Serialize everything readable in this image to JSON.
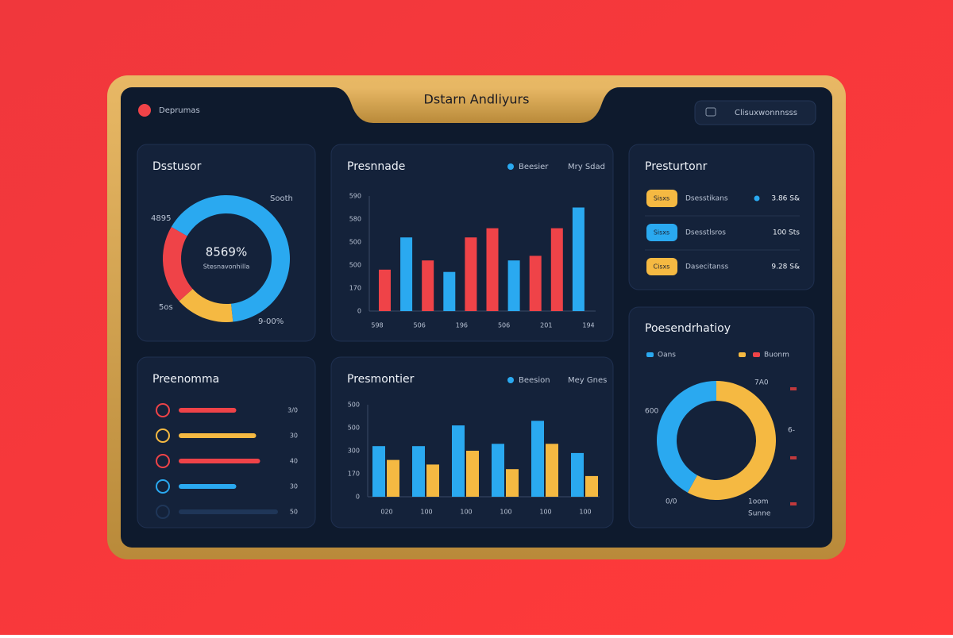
{
  "header": {
    "title": "Dstarn Andliyurs",
    "logo": "Deprumas",
    "button": "Clisuxwonnnsss"
  },
  "donut_card": {
    "title": "Dsstusor",
    "center_value": "8569%",
    "center_label": "Stesnavonhilla",
    "labels": [
      "Sooth",
      "4895",
      "5os",
      "9-00%"
    ],
    "segments": [
      {
        "color": "#2aa9f0",
        "value": 65
      },
      {
        "color": "#f5b942",
        "value": 15
      },
      {
        "color": "#ef4348",
        "value": 20
      }
    ]
  },
  "bar_card": {
    "title": "Presnnade",
    "legend": [
      {
        "name": "Beesier",
        "color": "#2aa9f0"
      },
      {
        "name": "Mry Sdad"
      }
    ],
    "ylim": [
      0,
      5
    ],
    "ytick_labels": [
      "0",
      "170",
      "500",
      "500",
      "580",
      "590"
    ],
    "xtick_labels": [
      "598",
      "506",
      "196",
      "506",
      "201",
      "194"
    ],
    "bars": [
      {
        "value": 1.8,
        "color": "#ef4348"
      },
      {
        "value": 3.2,
        "color": "#2aa9f0"
      },
      {
        "value": 2.2,
        "color": "#ef4348"
      },
      {
        "value": 1.7,
        "color": "#2aa9f0"
      },
      {
        "value": 3.2,
        "color": "#ef4348"
      },
      {
        "value": 3.6,
        "color": "#ef4348"
      },
      {
        "value": 2.2,
        "color": "#2aa9f0"
      },
      {
        "value": 2.4,
        "color": "#ef4348"
      },
      {
        "value": 3.6,
        "color": "#ef4348"
      },
      {
        "value": 4.5,
        "color": "#2aa9f0"
      }
    ]
  },
  "list_card": {
    "title": "Presturtonr",
    "rows": [
      {
        "pill": "Sisxs",
        "pill_color": "#f5b942",
        "name": "Dsesstikans",
        "value": "3.86 S&",
        "dot_color": "#2aa9f0"
      },
      {
        "pill": "Sisxs",
        "pill_color": "#2aa9f0",
        "name": "Dsesstlsros",
        "value": "100 Sts"
      },
      {
        "pill": "Cisxs",
        "pill_color": "#f5b942",
        "name": "Dasecitanss",
        "value": "9.28 S&"
      }
    ]
  },
  "progress_card": {
    "title": "Preenomma",
    "rows": [
      {
        "color": "#ef4348",
        "value": 58,
        "label": "3/0"
      },
      {
        "color": "#f5b942",
        "value": 78,
        "label": "30"
      },
      {
        "color": "#ef4348",
        "value": 82,
        "label": "40"
      },
      {
        "color": "#2aa9f0",
        "value": 58,
        "label": "30"
      },
      {
        "color": "#1f3658",
        "value": 100,
        "label": "50"
      }
    ]
  },
  "group_card": {
    "title": "Presmontier",
    "legend": [
      {
        "name": "Beesion",
        "color": "#2aa9f0"
      },
      {
        "name": "Mey Gnes"
      }
    ],
    "ylim": [
      0,
      4
    ],
    "ytick_labels": [
      "0",
      "170",
      "300",
      "500",
      "500"
    ],
    "xtick_labels": [
      "020",
      "100",
      "100",
      "100",
      "100",
      "100"
    ],
    "series": [
      {
        "color": "#2aa9f0",
        "values": [
          2.2,
          2.2,
          3.1,
          2.3,
          3.3,
          1.9
        ]
      },
      {
        "color": "#f5b942",
        "values": [
          1.6,
          1.4,
          2.0,
          1.2,
          2.3,
          0.9
        ]
      }
    ]
  },
  "ring_card": {
    "title": "Poesendrhatioy",
    "legend": [
      {
        "name": "Oans",
        "color": "#2aa9f0"
      },
      {
        "name": "Buonm",
        "colors": [
          "#f5b942",
          "#ef4348"
        ]
      }
    ],
    "labels": [
      "7A0",
      "600",
      "0/0",
      "1oom",
      "Sunne"
    ],
    "side_label": "6-",
    "segments": [
      {
        "color": "#f5b942",
        "value": 58
      },
      {
        "color": "#2aa9f0",
        "value": 42
      }
    ]
  }
}
